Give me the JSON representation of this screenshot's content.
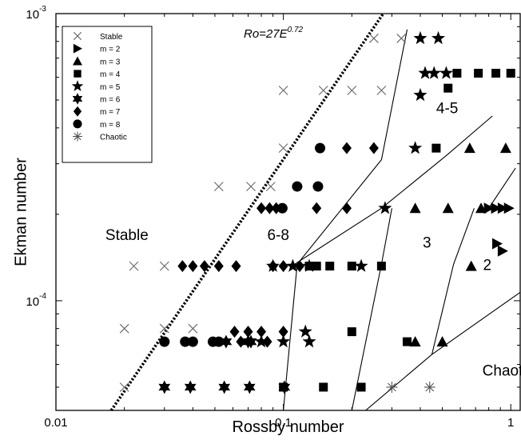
{
  "chart_data": {
    "type": "scatter",
    "xlabel": "Rossby number",
    "ylabel": "Ekman number",
    "x_scale": "log",
    "y_scale": "log",
    "xlim": [
      0.01,
      1.1
    ],
    "ylim": [
      4.15e-05,
      0.001
    ],
    "x_ticks": [
      {
        "value": 0.01,
        "label": "0.01"
      },
      {
        "value": 0.1,
        "label": "0.1"
      },
      {
        "value": 1,
        "label": "1"
      }
    ],
    "y_ticks": [
      {
        "value": 0.0001,
        "base": "10",
        "exp": "-4"
      },
      {
        "value": 0.001,
        "base": "10",
        "exp": "-3"
      }
    ],
    "grid": false,
    "legend_position": "top-left",
    "legend": [
      {
        "label": "Stable",
        "marker": "x"
      },
      {
        "label": "m = 2",
        "marker": "triangle-right"
      },
      {
        "label": "m = 3",
        "marker": "triangle-up"
      },
      {
        "label": "m = 4",
        "marker": "square"
      },
      {
        "label": "m = 5",
        "marker": "star5"
      },
      {
        "label": "m = 6",
        "marker": "star6"
      },
      {
        "label": "m = 7",
        "marker": "diamond"
      },
      {
        "label": "m = 8",
        "marker": "circle"
      },
      {
        "label": "Chaotic",
        "marker": "asterisk"
      }
    ],
    "fit_line": {
      "label_main": "Ro=27E",
      "label_exp": "0.72",
      "points": [
        [
          0.0175,
          4.15e-05
        ],
        [
          0.275,
          0.001
        ]
      ]
    },
    "regime_boundaries": [
      [
        [
          0.1,
          4.15e-05
        ],
        [
          0.115,
          0.000134
        ],
        [
          0.27,
          0.00031
        ],
        [
          0.35,
          0.00088
        ]
      ],
      [
        [
          0.112,
          0.000134
        ],
        [
          0.27,
          0.00021
        ],
        [
          0.52,
          0.00032
        ],
        [
          0.83,
          0.00044
        ]
      ],
      [
        [
          0.2,
          4.15e-05
        ],
        [
          0.27,
          0.000134
        ],
        [
          0.3,
          0.00021
        ]
      ],
      [
        [
          0.45,
          6.5e-05
        ],
        [
          0.56,
          0.000134
        ],
        [
          0.69,
          0.00021
        ]
      ],
      [
        [
          0.8,
          0.00021
        ],
        [
          1.05,
          0.00029
        ]
      ],
      [
        [
          0.23,
          4.15e-05
        ],
        [
          0.45,
          6.5e-05
        ],
        [
          1.1,
          0.000107
        ]
      ]
    ],
    "region_labels": [
      {
        "text": "Stable",
        "x": 0.0165,
        "y": 0.000163
      },
      {
        "text": "6-8",
        "x": 0.085,
        "y": 0.000163
      },
      {
        "text": "4-5",
        "x": 0.47,
        "y": 0.00045
      },
      {
        "text": "3",
        "x": 0.41,
        "y": 0.000153
      },
      {
        "text": "2",
        "x": 0.755,
        "y": 0.000128
      },
      {
        "text": "Chaotic",
        "x": 0.75,
        "y": 5.48e-05
      }
    ],
    "series": [
      {
        "name": "Stable",
        "marker": "x",
        "points": [
          [
            0.02,
            5e-05
          ],
          [
            0.02,
            8e-05
          ],
          [
            0.022,
            0.000132
          ],
          [
            0.03,
            0.000132
          ],
          [
            0.03,
            8e-05
          ],
          [
            0.04,
            8e-05
          ],
          [
            0.052,
            0.00025
          ],
          [
            0.072,
            0.00025
          ],
          [
            0.088,
            0.00025
          ],
          [
            0.1,
            0.00034
          ],
          [
            0.1,
            0.00054
          ],
          [
            0.15,
            0.00054
          ],
          [
            0.2,
            0.00054
          ],
          [
            0.27,
            0.00054
          ],
          [
            0.25,
            0.00082
          ],
          [
            0.33,
            0.00082
          ]
        ]
      },
      {
        "name": "m = 2",
        "marker": "triangle-right",
        "points": [
          [
            0.8,
            0.00021
          ],
          [
            0.86,
            0.00021
          ],
          [
            0.92,
            0.00021
          ],
          [
            0.98,
            0.00021
          ],
          [
            0.87,
            0.000158
          ],
          [
            0.92,
            0.000149
          ]
        ]
      },
      {
        "name": "m = 3",
        "marker": "triangle-up",
        "points": [
          [
            0.38,
            0.00021
          ],
          [
            0.53,
            0.00021
          ],
          [
            0.74,
            0.00021
          ],
          [
            0.67,
            0.000132
          ],
          [
            0.38,
            7.2e-05
          ],
          [
            0.5,
            7.2e-05
          ],
          [
            0.66,
            0.00034
          ],
          [
            0.95,
            0.00034
          ]
        ]
      },
      {
        "name": "m = 4",
        "marker": "square",
        "points": [
          [
            0.1,
            5e-05
          ],
          [
            0.15,
            5e-05
          ],
          [
            0.22,
            5e-05
          ],
          [
            0.13,
            0.000132
          ],
          [
            0.14,
            0.000132
          ],
          [
            0.16,
            0.000132
          ],
          [
            0.2,
            0.000132
          ],
          [
            0.27,
            0.000132
          ],
          [
            0.2,
            7.8e-05
          ],
          [
            0.35,
            7.2e-05
          ],
          [
            0.47,
            0.00034
          ],
          [
            0.53,
            0.00055
          ],
          [
            0.58,
            0.00062
          ],
          [
            0.72,
            0.00062
          ],
          [
            0.86,
            0.00062
          ],
          [
            1.0,
            0.00062
          ]
        ]
      },
      {
        "name": "m = 5",
        "marker": "star5",
        "points": [
          [
            0.09,
            0.000132
          ],
          [
            0.11,
            0.000132
          ],
          [
            0.13,
            0.000132
          ],
          [
            0.22,
            0.000132
          ],
          [
            0.08,
            7.2e-05
          ],
          [
            0.1,
            7.2e-05
          ],
          [
            0.13,
            7.2e-05
          ],
          [
            0.125,
            7.8e-05
          ],
          [
            0.28,
            0.00021
          ],
          [
            0.38,
            0.00034
          ],
          [
            0.4,
            0.00052
          ],
          [
            0.42,
            0.00062
          ],
          [
            0.46,
            0.00062
          ],
          [
            0.52,
            0.00062
          ],
          [
            0.4,
            0.00082
          ],
          [
            0.48,
            0.00082
          ]
        ]
      },
      {
        "name": "m = 6",
        "marker": "star6",
        "points": [
          [
            0.03,
            5e-05
          ],
          [
            0.039,
            5e-05
          ],
          [
            0.055,
            5e-05
          ],
          [
            0.071,
            5e-05
          ],
          [
            0.101,
            5e-05
          ],
          [
            0.056,
            7.2e-05
          ],
          [
            0.07,
            7.2e-05
          ],
          [
            0.072,
            7.2e-05
          ]
        ]
      },
      {
        "name": "m = 7",
        "marker": "diamond",
        "points": [
          [
            0.036,
            0.000132
          ],
          [
            0.04,
            0.000132
          ],
          [
            0.045,
            0.000132
          ],
          [
            0.052,
            0.000132
          ],
          [
            0.062,
            0.000132
          ],
          [
            0.09,
            0.000132
          ],
          [
            0.1,
            0.000132
          ],
          [
            0.118,
            0.000132
          ],
          [
            0.08,
            0.00021
          ],
          [
            0.087,
            0.00021
          ],
          [
            0.093,
            0.00021
          ],
          [
            0.14,
            0.00021
          ],
          [
            0.19,
            0.00021
          ],
          [
            0.19,
            0.00034
          ],
          [
            0.25,
            0.00034
          ],
          [
            0.061,
            7.8e-05
          ],
          [
            0.07,
            7.8e-05
          ],
          [
            0.08,
            7.8e-05
          ],
          [
            0.1,
            7.8e-05
          ],
          [
            0.065,
            7.2e-05
          ],
          [
            0.085,
            7.2e-05
          ]
        ]
      },
      {
        "name": "m = 8",
        "marker": "circle",
        "points": [
          [
            0.03,
            7.2e-05
          ],
          [
            0.037,
            7.2e-05
          ],
          [
            0.04,
            7.2e-05
          ],
          [
            0.049,
            7.2e-05
          ],
          [
            0.052,
            7.2e-05
          ],
          [
            0.099,
            0.00021
          ],
          [
            0.115,
            0.00025
          ],
          [
            0.142,
            0.00025
          ],
          [
            0.145,
            0.00034
          ]
        ]
      },
      {
        "name": "Chaotic",
        "marker": "asterisk",
        "points": [
          [
            0.3,
            5e-05
          ],
          [
            0.44,
            5e-05
          ]
        ]
      }
    ]
  }
}
